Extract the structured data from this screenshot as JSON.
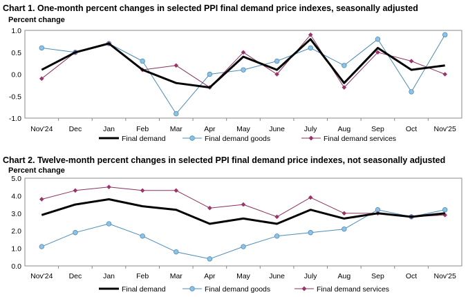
{
  "colors": {
    "final_demand": "#000000",
    "goods": "#4b8bb8",
    "goods_fill": "#8ec3e6",
    "services": "#8b2f5e",
    "services_marker": "#9c3469"
  },
  "chart_data": [
    {
      "type": "line",
      "title": "Chart 1. One-month percent changes in selected PPI final demand price indexes, seasonally adjusted",
      "ylabel": "Percent change",
      "xlabel": "",
      "ylim": [
        -1.0,
        1.0
      ],
      "yticks": [
        "1.0",
        "0.5",
        "0.0",
        "-0.5",
        "-1.0"
      ],
      "ytick_values": [
        1.0,
        0.5,
        0.0,
        -0.5,
        -1.0
      ],
      "categories": [
        "Nov'24",
        "Dec",
        "Jan",
        "Feb",
        "Mar",
        "Apr",
        "May",
        "June",
        "July",
        "Aug",
        "Sep",
        "Oct",
        "Nov'25"
      ],
      "series": [
        {
          "name": "Final demand",
          "values": [
            0.1,
            0.5,
            0.7,
            0.1,
            -0.2,
            -0.3,
            0.4,
            0.1,
            0.8,
            -0.2,
            0.6,
            0.1,
            0.2
          ]
        },
        {
          "name": "Final demand goods",
          "values": [
            0.6,
            0.5,
            0.7,
            0.3,
            -0.9,
            0.0,
            0.1,
            0.3,
            0.6,
            0.2,
            0.8,
            -0.4,
            0.9
          ]
        },
        {
          "name": "Final demand services",
          "values": [
            -0.1,
            0.5,
            0.7,
            0.1,
            0.2,
            -0.3,
            0.5,
            0.0,
            0.9,
            -0.3,
            0.5,
            0.3,
            0.0
          ]
        }
      ],
      "grid": false,
      "legend": "bottom"
    },
    {
      "type": "line",
      "title": "Chart 2. Twelve-month percent changes in selected PPI final demand price indexes, not seasonally adjusted",
      "ylabel": "Percent change",
      "xlabel": "",
      "ylim": [
        0.0,
        5.0
      ],
      "yticks": [
        "5.0",
        "4.0",
        "3.0",
        "2.0",
        "1.0",
        "0.0"
      ],
      "ytick_values": [
        5.0,
        4.0,
        3.0,
        2.0,
        1.0,
        0.0
      ],
      "categories": [
        "Nov'24",
        "Dec",
        "Jan",
        "Feb",
        "Mar",
        "Apr",
        "May",
        "June",
        "July",
        "Aug",
        "Sep",
        "Oct",
        "Nov'25"
      ],
      "series": [
        {
          "name": "Final demand",
          "values": [
            2.9,
            3.5,
            3.8,
            3.4,
            3.2,
            2.4,
            2.7,
            2.4,
            3.2,
            2.7,
            3.0,
            2.8,
            3.0
          ]
        },
        {
          "name": "Final demand goods",
          "values": [
            1.1,
            1.9,
            2.4,
            1.7,
            0.8,
            0.4,
            1.1,
            1.7,
            1.9,
            2.1,
            3.2,
            2.8,
            3.2
          ]
        },
        {
          "name": "Final demand services",
          "values": [
            3.8,
            4.3,
            4.5,
            4.3,
            4.3,
            3.3,
            3.5,
            2.8,
            3.9,
            3.0,
            3.0,
            2.8,
            2.9
          ]
        }
      ],
      "grid": false,
      "legend": "bottom"
    }
  ]
}
